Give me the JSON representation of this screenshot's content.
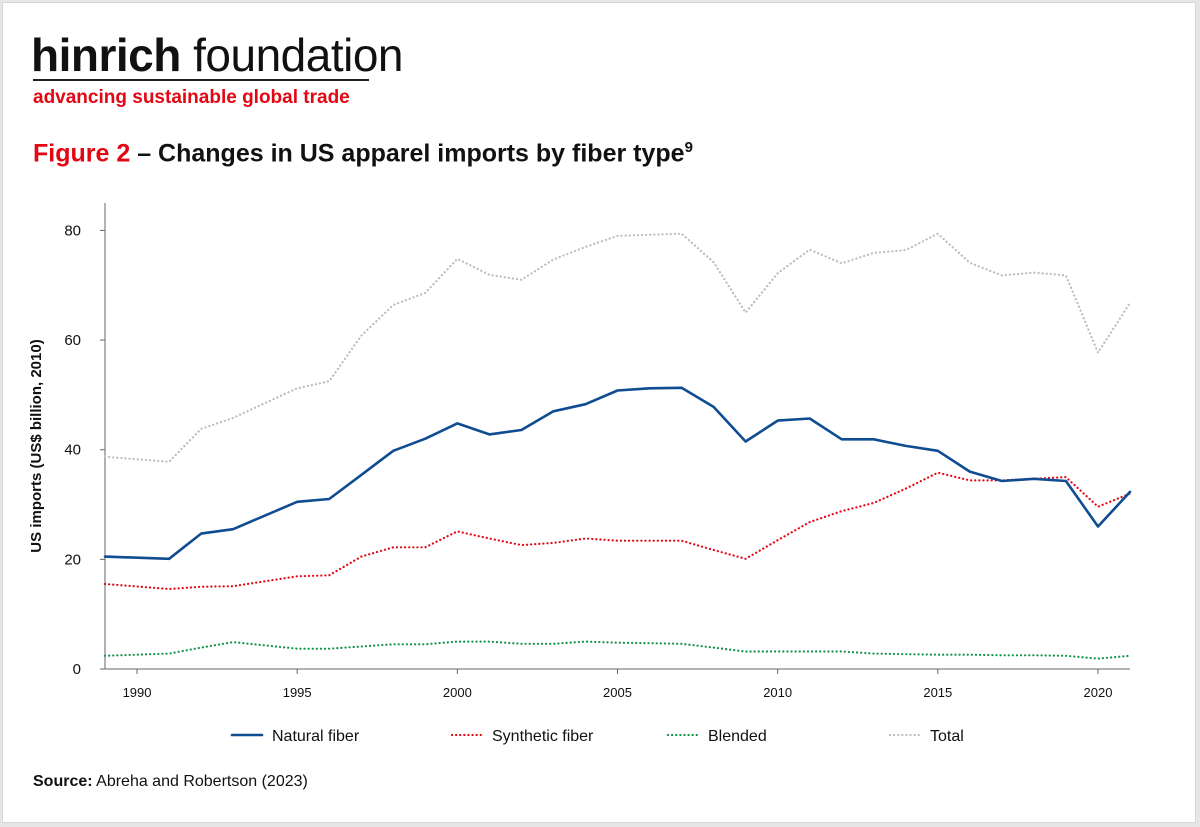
{
  "brand": {
    "name_bold": "hinrich",
    "name_light": "foundation",
    "tagline": "advancing sustainable global trade"
  },
  "figure": {
    "label": "Figure 2",
    "title": "Changes in US apparel imports by fiber type",
    "footnote": "9"
  },
  "source": {
    "label": "Source:",
    "text": "Abreha and Robertson (2023)"
  },
  "colors": {
    "natural": "#0f4c92",
    "synthetic": "#e30613",
    "blended": "#119447",
    "total": "#bcbcbc",
    "accent": "#e30613"
  },
  "chart_data": {
    "type": "line",
    "title": "Changes in US apparel imports by fiber type",
    "xlabel": "",
    "ylabel": "US imports (US$ billion, 2010)",
    "xlim": [
      1989,
      2021
    ],
    "ylim": [
      0,
      85
    ],
    "x_ticks": [
      1990,
      1995,
      2000,
      2005,
      2010,
      2015,
      2020
    ],
    "y_ticks": [
      0,
      20,
      40,
      60,
      80
    ],
    "grid": false,
    "legend_position": "bottom",
    "x": [
      1989,
      1991,
      1992,
      1993,
      1995,
      1996,
      1997,
      1998,
      1999,
      2000,
      2001,
      2002,
      2003,
      2004,
      2005,
      2006,
      2007,
      2008,
      2009,
      2010,
      2011,
      2012,
      2013,
      2014,
      2015,
      2016,
      2017,
      2018,
      2019,
      2020,
      2021
    ],
    "series": [
      {
        "name": "Natural fiber",
        "style": "solid",
        "values": [
          20.5,
          20.1,
          24.7,
          25.5,
          30.5,
          31.0,
          35.4,
          39.8,
          42.0,
          44.8,
          42.8,
          43.6,
          47.0,
          48.3,
          50.8,
          51.2,
          51.3,
          47.8,
          41.5,
          45.3,
          45.7,
          41.9,
          41.9,
          40.7,
          39.8,
          36.0,
          34.3,
          34.7,
          34.3,
          26.0,
          32.3
        ]
      },
      {
        "name": "Synthetic fiber",
        "style": "dotted",
        "values": [
          15.5,
          14.6,
          15.0,
          15.1,
          16.9,
          17.1,
          20.5,
          22.2,
          22.2,
          25.1,
          23.8,
          22.6,
          23.0,
          23.8,
          23.4,
          23.4,
          23.4,
          21.7,
          20.1,
          23.5,
          26.8,
          28.8,
          30.3,
          32.9,
          35.8,
          34.4,
          34.4,
          34.7,
          35.0,
          29.6,
          32.0
        ]
      },
      {
        "name": "Blended",
        "style": "dotted",
        "values": [
          2.4,
          2.8,
          3.9,
          4.9,
          3.7,
          3.7,
          4.1,
          4.5,
          4.5,
          5.0,
          5.0,
          4.6,
          4.6,
          5.0,
          4.8,
          4.7,
          4.6,
          3.9,
          3.2,
          3.2,
          3.2,
          3.2,
          2.8,
          2.7,
          2.6,
          2.6,
          2.5,
          2.5,
          2.4,
          1.9,
          2.4
        ]
      },
      {
        "name": "Total",
        "style": "dotted",
        "values": [
          38.7,
          37.8,
          43.8,
          45.8,
          51.2,
          52.5,
          60.8,
          66.4,
          68.6,
          74.8,
          71.9,
          71.0,
          74.7,
          77.0,
          79.0,
          79.2,
          79.4,
          74.2,
          65.0,
          72.2,
          76.5,
          74.0,
          75.9,
          76.4,
          79.4,
          74.1,
          71.8,
          72.3,
          71.8,
          57.7,
          66.8
        ]
      }
    ]
  }
}
